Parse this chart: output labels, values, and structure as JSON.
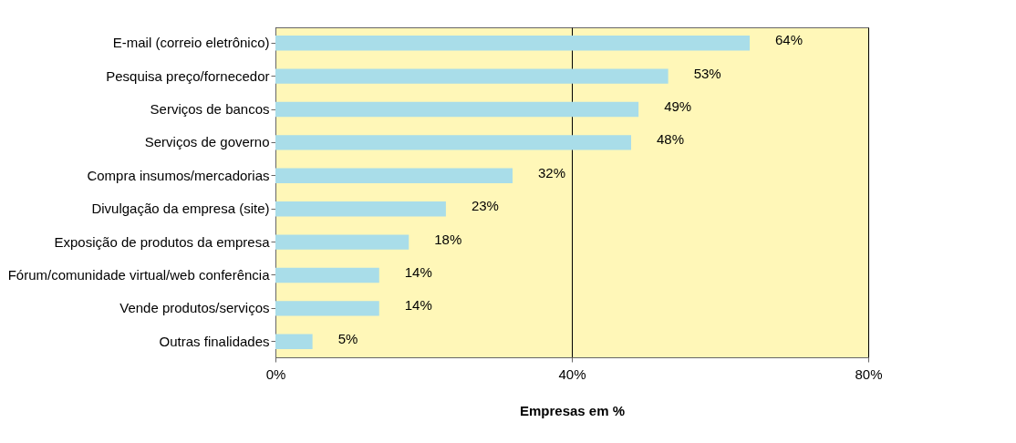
{
  "chart_data": {
    "type": "bar",
    "orientation": "horizontal",
    "xlabel": "Empresas em %",
    "categories": [
      "E-mail (correio eletrônico)",
      "Pesquisa preço/fornecedor",
      "Serviços de bancos",
      "Serviços de governo",
      "Compra insumos/mercadorias",
      "Divulgação da empresa (site)",
      "Exposição de produtos da empresa",
      "Fórum/comunidade virtual/web conferência",
      "Vende produtos/serviços",
      "Outras finalidades"
    ],
    "values": [
      64,
      53,
      49,
      48,
      32,
      23,
      18,
      14,
      14,
      5
    ],
    "value_labels": [
      "64%",
      "53%",
      "49%",
      "48%",
      "32%",
      "23%",
      "18%",
      "14%",
      "14%",
      "5%"
    ],
    "color": "#a9dde9",
    "xlim": [
      0,
      80
    ],
    "xticks": [
      {
        "value": 0,
        "label": "0%"
      },
      {
        "value": 40,
        "label": "40%"
      },
      {
        "value": 80,
        "label": "80%"
      }
    ],
    "grid": "x"
  }
}
